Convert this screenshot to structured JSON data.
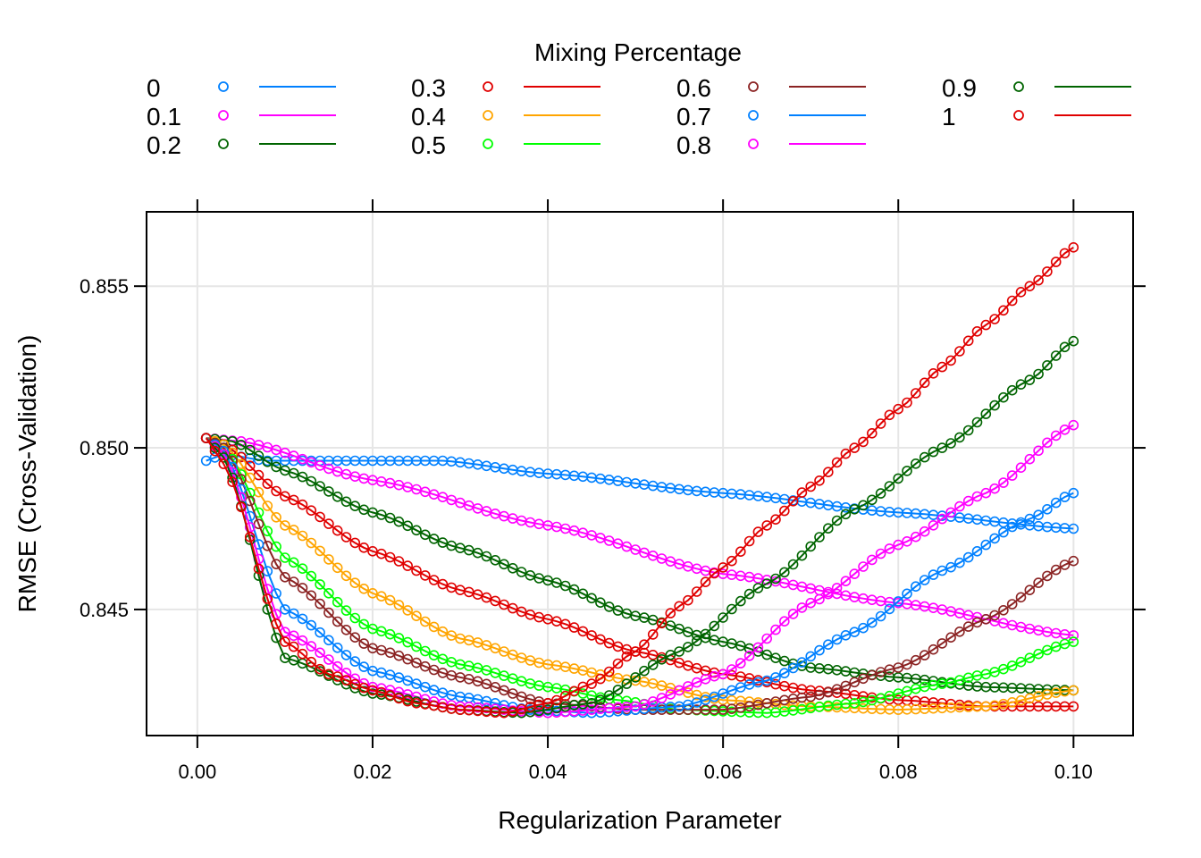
{
  "chart_data": {
    "type": "line",
    "title": "",
    "legend_title": "Mixing Percentage",
    "legend_placement": "top",
    "xlabel": "Regularization Parameter",
    "ylabel": "RMSE (Cross-Validation)",
    "xlim": [
      -0.0058,
      0.1068
    ],
    "ylim": [
      0.8411,
      0.8573
    ],
    "x_ticks": [
      0.0,
      0.02,
      0.04,
      0.06,
      0.08,
      0.1
    ],
    "x_tick_labels": [
      "0.00",
      "0.02",
      "0.04",
      "0.06",
      "0.08",
      "0.10"
    ],
    "y_ticks": [
      0.845,
      0.85,
      0.855
    ],
    "y_tick_labels": [
      "0.845",
      "0.850",
      "0.855"
    ],
    "grid": true,
    "markers": "open-circle",
    "x_range": [
      0.001,
      0.1
    ],
    "series": [
      {
        "name": "0",
        "color": "#0080ff",
        "points": [
          [
            0.001,
            0.8496
          ],
          [
            0.003,
            0.8498
          ],
          [
            0.008,
            0.8496
          ],
          [
            0.015,
            0.8496
          ],
          [
            0.028,
            0.8496
          ],
          [
            0.04,
            0.8492
          ],
          [
            0.06,
            0.8486
          ],
          [
            0.08,
            0.848
          ],
          [
            0.1,
            0.8475
          ]
        ]
      },
      {
        "name": "0.1",
        "color": "#ff00ff",
        "points": [
          [
            0.001,
            0.8503
          ],
          [
            0.005,
            0.8502
          ],
          [
            0.02,
            0.849
          ],
          [
            0.04,
            0.8476
          ],
          [
            0.06,
            0.8461
          ],
          [
            0.08,
            0.8452
          ],
          [
            0.1,
            0.8442
          ]
        ]
      },
      {
        "name": "0.2",
        "color": "#006400",
        "points": [
          [
            0.001,
            0.8503
          ],
          [
            0.004,
            0.8502
          ],
          [
            0.01,
            0.8493
          ],
          [
            0.02,
            0.848
          ],
          [
            0.03,
            0.8469
          ],
          [
            0.04,
            0.8459
          ],
          [
            0.05,
            0.8448
          ],
          [
            0.06,
            0.844
          ],
          [
            0.07,
            0.8432
          ],
          [
            0.08,
            0.8429
          ],
          [
            0.09,
            0.8426
          ],
          [
            0.1,
            0.8425
          ]
        ]
      },
      {
        "name": "0.3",
        "color": "#e00000",
        "points": [
          [
            0.001,
            0.8503
          ],
          [
            0.003,
            0.8501
          ],
          [
            0.01,
            0.8485
          ],
          [
            0.02,
            0.8468
          ],
          [
            0.03,
            0.8456
          ],
          [
            0.04,
            0.8447
          ],
          [
            0.05,
            0.8437
          ],
          [
            0.06,
            0.843
          ],
          [
            0.07,
            0.8425
          ],
          [
            0.08,
            0.8422
          ],
          [
            0.09,
            0.842
          ],
          [
            0.1,
            0.842
          ]
        ]
      },
      {
        "name": "0.4",
        "color": "#ffa500",
        "points": [
          [
            0.001,
            0.8503
          ],
          [
            0.003,
            0.8501
          ],
          [
            0.01,
            0.8476
          ],
          [
            0.02,
            0.8455
          ],
          [
            0.03,
            0.8441
          ],
          [
            0.04,
            0.8433
          ],
          [
            0.05,
            0.8428
          ],
          [
            0.06,
            0.8422
          ],
          [
            0.07,
            0.842
          ],
          [
            0.08,
            0.8419
          ],
          [
            0.09,
            0.842
          ],
          [
            0.1,
            0.8425
          ]
        ]
      },
      {
        "name": "0.5",
        "color": "#00ff00",
        "points": [
          [
            0.001,
            0.8503
          ],
          [
            0.003,
            0.85
          ],
          [
            0.01,
            0.8466
          ],
          [
            0.02,
            0.8444
          ],
          [
            0.03,
            0.8433
          ],
          [
            0.04,
            0.8426
          ],
          [
            0.048,
            0.8422
          ],
          [
            0.055,
            0.8419
          ],
          [
            0.065,
            0.8418
          ],
          [
            0.075,
            0.8421
          ],
          [
            0.085,
            0.8427
          ],
          [
            0.09,
            0.843
          ],
          [
            0.1,
            0.844
          ]
        ]
      },
      {
        "name": "0.6",
        "color": "#8b2323",
        "points": [
          [
            0.001,
            0.8503
          ],
          [
            0.003,
            0.85
          ],
          [
            0.01,
            0.846
          ],
          [
            0.02,
            0.8438
          ],
          [
            0.03,
            0.8429
          ],
          [
            0.04,
            0.8421
          ],
          [
            0.05,
            0.8419
          ],
          [
            0.06,
            0.8419
          ],
          [
            0.07,
            0.8423
          ],
          [
            0.08,
            0.8432
          ],
          [
            0.09,
            0.8447
          ],
          [
            0.1,
            0.8465
          ]
        ]
      },
      {
        "name": "0.7",
        "color": "#0080ff",
        "points": [
          [
            0.001,
            0.8503
          ],
          [
            0.003,
            0.8499
          ],
          [
            0.01,
            0.845
          ],
          [
            0.02,
            0.8431
          ],
          [
            0.03,
            0.8423
          ],
          [
            0.038,
            0.8419
          ],
          [
            0.045,
            0.8418
          ],
          [
            0.055,
            0.842
          ],
          [
            0.065,
            0.8428
          ],
          [
            0.075,
            0.8443
          ],
          [
            0.085,
            0.8462
          ],
          [
            0.095,
            0.8478
          ],
          [
            0.1,
            0.8486
          ]
        ]
      },
      {
        "name": "0.8",
        "color": "#ff00ff",
        "points": [
          [
            0.001,
            0.8503
          ],
          [
            0.003,
            0.8498
          ],
          [
            0.01,
            0.8443
          ],
          [
            0.02,
            0.8426
          ],
          [
            0.03,
            0.842
          ],
          [
            0.04,
            0.8418
          ],
          [
            0.05,
            0.842
          ],
          [
            0.06,
            0.843
          ],
          [
            0.07,
            0.8452
          ],
          [
            0.08,
            0.847
          ],
          [
            0.09,
            0.8486
          ],
          [
            0.1,
            0.8507
          ]
        ]
      },
      {
        "name": "0.9",
        "color": "#006400",
        "points": [
          [
            0.001,
            0.8503
          ],
          [
            0.003,
            0.8497
          ],
          [
            0.01,
            0.8435
          ],
          [
            0.02,
            0.8424
          ],
          [
            0.03,
            0.8419
          ],
          [
            0.037,
            0.8418
          ],
          [
            0.045,
            0.8421
          ],
          [
            0.055,
            0.8437
          ],
          [
            0.065,
            0.8458
          ],
          [
            0.075,
            0.8481
          ],
          [
            0.085,
            0.85
          ],
          [
            0.095,
            0.8521
          ],
          [
            0.1,
            0.8533
          ]
        ]
      },
      {
        "name": "1",
        "color": "#e00000",
        "points": [
          [
            0.001,
            0.8503
          ],
          [
            0.003,
            0.8495
          ],
          [
            0.01,
            0.844
          ],
          [
            0.015,
            0.843
          ],
          [
            0.02,
            0.8425
          ],
          [
            0.025,
            0.8421
          ],
          [
            0.03,
            0.8419
          ],
          [
            0.035,
            0.8418
          ],
          [
            0.04,
            0.8421
          ],
          [
            0.045,
            0.8427
          ],
          [
            0.05,
            0.8437
          ],
          [
            0.055,
            0.8451
          ],
          [
            0.06,
            0.8463
          ],
          [
            0.065,
            0.8476
          ],
          [
            0.07,
            0.8488
          ],
          [
            0.075,
            0.85
          ],
          [
            0.08,
            0.8512
          ],
          [
            0.085,
            0.8525
          ],
          [
            0.09,
            0.8538
          ],
          [
            0.095,
            0.855
          ],
          [
            0.1,
            0.8562
          ]
        ]
      }
    ]
  }
}
